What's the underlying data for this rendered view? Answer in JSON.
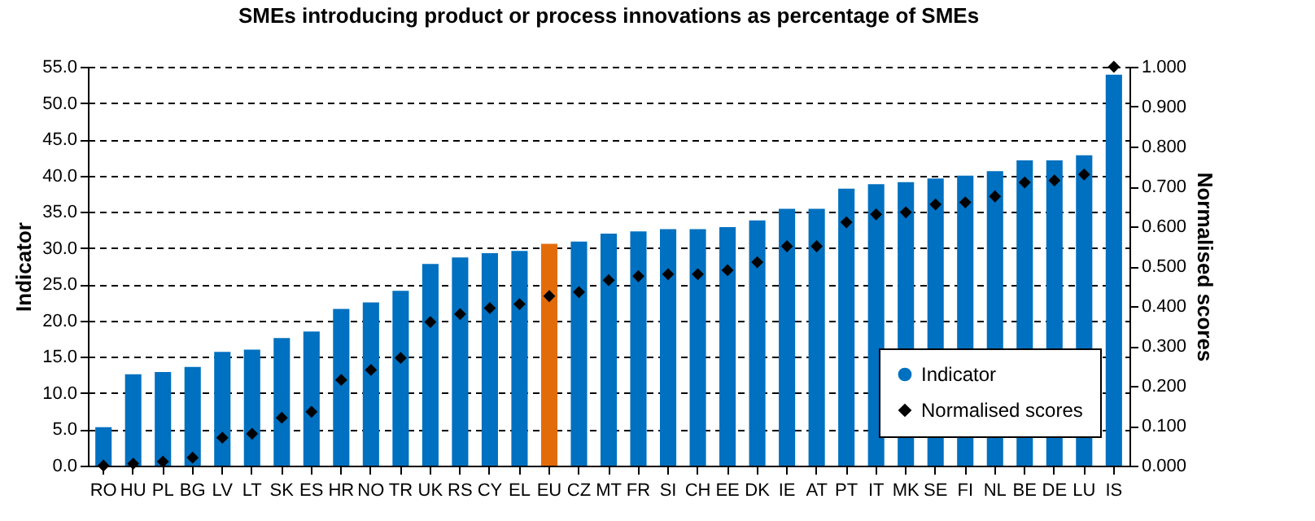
{
  "chart_data": {
    "type": "bar",
    "title": "SMEs introducing product or process innovations as percentage of SMEs",
    "categories": [
      "RO",
      "HU",
      "PL",
      "BG",
      "LV",
      "LT",
      "SK",
      "ES",
      "HR",
      "NO",
      "TR",
      "UK",
      "RS",
      "CY",
      "EL",
      "EU",
      "CZ",
      "MT",
      "FR",
      "SI",
      "CH",
      "EE",
      "DK",
      "IE",
      "AT",
      "PT",
      "IT",
      "MK",
      "SE",
      "FI",
      "NL",
      "BE",
      "DE",
      "LU",
      "IS"
    ],
    "series": [
      {
        "name": "Indicator",
        "color": "#0070c0",
        "colors": [
          "#0070c0",
          "#0070c0",
          "#0070c0",
          "#0070c0",
          "#0070c0",
          "#0070c0",
          "#0070c0",
          "#0070c0",
          "#0070c0",
          "#0070c0",
          "#0070c0",
          "#0070c0",
          "#0070c0",
          "#0070c0",
          "#0070c0",
          "#e36c0a",
          "#0070c0",
          "#0070c0",
          "#0070c0",
          "#0070c0",
          "#0070c0",
          "#0070c0",
          "#0070c0",
          "#0070c0",
          "#0070c0",
          "#0070c0",
          "#0070c0",
          "#0070c0",
          "#0070c0",
          "#0070c0",
          "#0070c0",
          "#0070c0",
          "#0070c0",
          "#0070c0",
          "#0070c0"
        ],
        "values": [
          5.3,
          12.6,
          12.9,
          13.6,
          15.7,
          16.0,
          17.6,
          18.5,
          21.6,
          22.5,
          24.1,
          27.8,
          28.7,
          29.3,
          29.6,
          30.6,
          30.9,
          32.0,
          32.3,
          32.6,
          32.6,
          32.9,
          33.8,
          35.4,
          35.4,
          38.2,
          38.8,
          39.1,
          39.6,
          40.0,
          40.6,
          42.1,
          42.1,
          42.8,
          53.9
        ]
      },
      {
        "name": "Normalised scores",
        "type": "scatter",
        "axis": "y2",
        "marker": "diamond",
        "color": "#000000",
        "values": [
          0.0,
          0.005,
          0.01,
          0.02,
          0.07,
          0.08,
          0.12,
          0.135,
          0.215,
          0.24,
          0.27,
          0.36,
          0.38,
          0.395,
          0.405,
          0.425,
          0.435,
          0.465,
          0.475,
          0.48,
          0.48,
          0.49,
          0.51,
          0.55,
          0.55,
          0.61,
          0.63,
          0.635,
          0.655,
          0.66,
          0.675,
          0.71,
          0.715,
          0.73,
          1.0
        ]
      }
    ],
    "ylabel": "Indicator",
    "y2label": "Normalised scores",
    "ylim": [
      0,
      55
    ],
    "yticks": [
      {
        "value": 0,
        "label": "0.0"
      },
      {
        "value": 5,
        "label": "5.0"
      },
      {
        "value": 10,
        "label": "10.0"
      },
      {
        "value": 15,
        "label": "15.0"
      },
      {
        "value": 20,
        "label": "20.0"
      },
      {
        "value": 25,
        "label": "25.0"
      },
      {
        "value": 30,
        "label": "30.0"
      },
      {
        "value": 35,
        "label": "35.0"
      },
      {
        "value": 40,
        "label": "40.0"
      },
      {
        "value": 45,
        "label": "45.0"
      },
      {
        "value": 50,
        "label": "50.0"
      },
      {
        "value": 55,
        "label": "55.0"
      }
    ],
    "y2lim": [
      0,
      1
    ],
    "y2ticks": [
      {
        "value": 0,
        "label": "0.000"
      },
      {
        "value": 0.1,
        "label": "0.100"
      },
      {
        "value": 0.2,
        "label": "0.200"
      },
      {
        "value": 0.3,
        "label": "0.300"
      },
      {
        "value": 0.4,
        "label": "0.400"
      },
      {
        "value": 0.5,
        "label": "0.500"
      },
      {
        "value": 0.6,
        "label": "0.600"
      },
      {
        "value": 0.7,
        "label": "0.700"
      },
      {
        "value": 0.8,
        "label": "0.800"
      },
      {
        "value": 0.9,
        "label": "0.900"
      },
      {
        "value": 1,
        "label": "1.000"
      }
    ],
    "grid": "y",
    "line_style": "dashed",
    "legend": "bottom right"
  }
}
